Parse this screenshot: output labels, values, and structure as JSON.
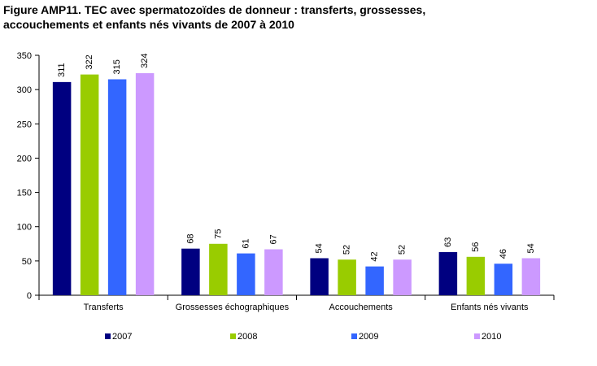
{
  "chart_data": {
    "type": "bar",
    "title_lines": [
      "Figure AMP11. TEC avec spermatozoïdes de donneur : transferts, grossesses,",
      "accouchements et enfants nés vivants de  2007 à 2010"
    ],
    "categories": [
      "Transferts",
      "Grossesses échographiques",
      "Accouchements",
      "Enfants nés vivants"
    ],
    "series": [
      {
        "name": "2007",
        "color": "#000080",
        "values": [
          311,
          68,
          54,
          63
        ]
      },
      {
        "name": "2008",
        "color": "#99CC00",
        "values": [
          322,
          75,
          52,
          56
        ]
      },
      {
        "name": "2009",
        "color": "#3366FF",
        "values": [
          315,
          61,
          42,
          46
        ]
      },
      {
        "name": "2010",
        "color": "#CC99FF",
        "values": [
          324,
          67,
          52,
          54
        ]
      }
    ],
    "ylim": [
      0,
      350
    ],
    "yticks": [
      "0",
      "50",
      "100",
      "150",
      "200",
      "250",
      "300",
      "350"
    ],
    "grid": false,
    "legend_position": "bottom"
  }
}
